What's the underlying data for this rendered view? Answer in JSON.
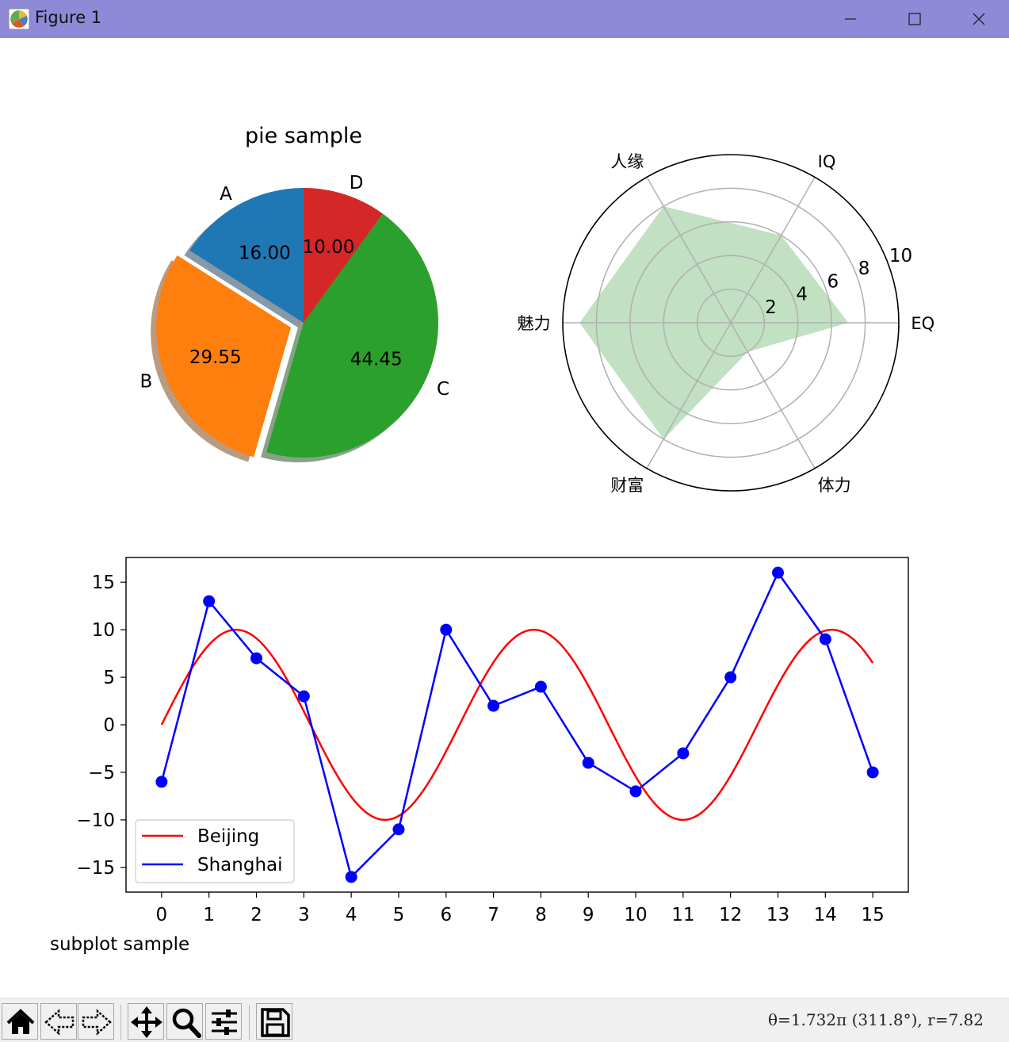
{
  "window": {
    "title": "Figure 1",
    "minimize_glyph": "—",
    "maximize_glyph": "☐",
    "close_glyph": "✕"
  },
  "toolbar": {
    "buttons": [
      {
        "name": "home-icon",
        "label": "Home"
      },
      {
        "name": "back-icon",
        "label": "Back"
      },
      {
        "name": "forward-icon",
        "label": "Forward"
      },
      {
        "name": "pan-icon",
        "label": "Pan"
      },
      {
        "name": "zoom-icon",
        "label": "Zoom"
      },
      {
        "name": "configure-subplots-icon",
        "label": "Configure subplots"
      },
      {
        "name": "save-icon",
        "label": "Save"
      }
    ],
    "coordinates": "θ=1.732π (311.8°), r=7.82"
  },
  "colors": {
    "titlebar": "#8e8ad8",
    "pie_A": "#1f77b4",
    "pie_B": "#ff7f0e",
    "pie_C": "#2ca02c",
    "pie_D": "#d62728",
    "radar_fill": "#c2e0c2",
    "line_beijing": "#ff0000",
    "line_shanghai": "#0000ff"
  },
  "chart_data": [
    {
      "type": "pie",
      "title": "pie sample",
      "labels": [
        "A",
        "B",
        "C",
        "D"
      ],
      "values": [
        16.0,
        29.55,
        44.45,
        10.0
      ],
      "value_labels": [
        "16.00",
        "29.55",
        "44.45",
        "10.00"
      ],
      "explode": [
        0,
        0.1,
        0,
        0
      ],
      "shadow": true,
      "start_angle_deg": 90,
      "direction": "counterclockwise"
    },
    {
      "type": "radar",
      "categories": [
        "EQ",
        "IQ",
        "人缘",
        "魅力",
        "财富",
        "体力"
      ],
      "values": [
        7,
        6,
        8,
        9,
        8,
        2
      ],
      "rlim": [
        0,
        10
      ],
      "rticks": [
        "2",
        "4",
        "6",
        "8",
        "10"
      ],
      "fill": true,
      "grid": true
    },
    {
      "type": "line",
      "xlabel": "subplot sample",
      "xticks": [
        "0",
        "1",
        "2",
        "3",
        "4",
        "5",
        "6",
        "7",
        "8",
        "9",
        "10",
        "11",
        "12",
        "13",
        "14",
        "15"
      ],
      "yticks": [
        "15",
        "10",
        "5",
        "0",
        "−5",
        "−10",
        "−15"
      ],
      "xlim": [
        -0.75,
        15.75
      ],
      "ylim": [
        -17.6,
        17.6
      ],
      "legend_position": "lower left",
      "series": [
        {
          "name": "Beijing",
          "function": "10*sin(x)",
          "x_range": [
            0,
            15
          ],
          "marker": "none"
        },
        {
          "name": "Shanghai",
          "x": [
            0,
            1,
            2,
            3,
            4,
            5,
            6,
            7,
            8,
            9,
            10,
            11,
            12,
            13,
            14,
            15
          ],
          "values": [
            -6,
            13,
            7,
            3,
            -16,
            -11,
            10,
            2,
            4,
            -4,
            -7,
            -3,
            5,
            16,
            9,
            -5
          ],
          "marker": "circle"
        }
      ]
    }
  ]
}
